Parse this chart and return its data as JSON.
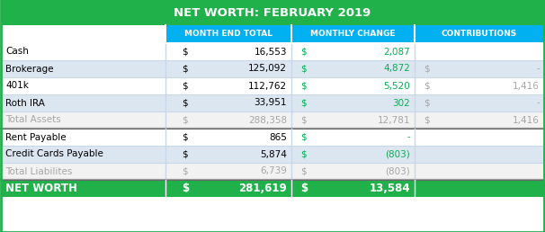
{
  "title": "NET WORTH: FEBRUARY 2019",
  "title_bg": "#21b14b",
  "title_fg": "#ffffff",
  "header_bg": "#00b0f0",
  "header_fg": "#ffffff",
  "col_headers": [
    "",
    "MONTH END TOTAL",
    "MONTHLY CHANGE",
    "CONTRIBUTIONS"
  ],
  "rows": [
    {
      "label": "Cash",
      "type": "normal",
      "met_dollar": "$",
      "met_val": "16,553",
      "mc_dollar": "$",
      "mc_val": "2,087",
      "con_dollar": "",
      "con_val": ""
    },
    {
      "label": "Brokerage",
      "type": "normal",
      "met_dollar": "$",
      "met_val": "125,092",
      "mc_dollar": "$",
      "mc_val": "4,872",
      "con_dollar": "$",
      "con_val": "-"
    },
    {
      "label": "401k",
      "type": "normal",
      "met_dollar": "$",
      "met_val": "112,762",
      "mc_dollar": "$",
      "mc_val": "5,520",
      "con_dollar": "$",
      "con_val": "1,416"
    },
    {
      "label": "Roth IRA",
      "type": "normal",
      "met_dollar": "$",
      "met_val": "33,951",
      "mc_dollar": "$",
      "mc_val": "302",
      "con_dollar": "$",
      "con_val": "-"
    },
    {
      "label": "Total Assets",
      "type": "total",
      "met_dollar": "$",
      "met_val": "288,358",
      "mc_dollar": "$",
      "mc_val": "12,781",
      "con_dollar": "$",
      "con_val": "1,416"
    },
    {
      "label": "Rent Payable",
      "type": "normal",
      "met_dollar": "$",
      "met_val": "865",
      "mc_dollar": "$",
      "mc_val": "-",
      "con_dollar": "",
      "con_val": ""
    },
    {
      "label": "Credit Cards Payable",
      "type": "normal",
      "met_dollar": "$",
      "met_val": "5,874",
      "mc_dollar": "$",
      "mc_val": "(803)",
      "con_dollar": "",
      "con_val": ""
    },
    {
      "label": "Total Liabilites",
      "type": "total",
      "met_dollar": "$",
      "met_val": "6,739",
      "mc_dollar": "$",
      "mc_val": "(803)",
      "con_dollar": "",
      "con_val": ""
    },
    {
      "label": "NET WORTH",
      "type": "networth",
      "met_dollar": "$",
      "met_val": "281,619",
      "mc_dollar": "$",
      "mc_val": "13,584",
      "con_dollar": "",
      "con_val": ""
    }
  ],
  "normal_fg": "#000000",
  "normal_mc_fg": "#00b050",
  "total_fg": "#a6a6a6",
  "networth_fg": "#ffffff",
  "networth_bg": "#21b14b",
  "row_bg_even": "#dce6f1",
  "row_bg_odd": "#ffffff",
  "total_row_bg": "#f2f2f2",
  "sep_color": "#c8d8ea",
  "outer_border": "#21b14b",
  "fig_w": 6.06,
  "fig_h": 2.58,
  "dpi": 100
}
